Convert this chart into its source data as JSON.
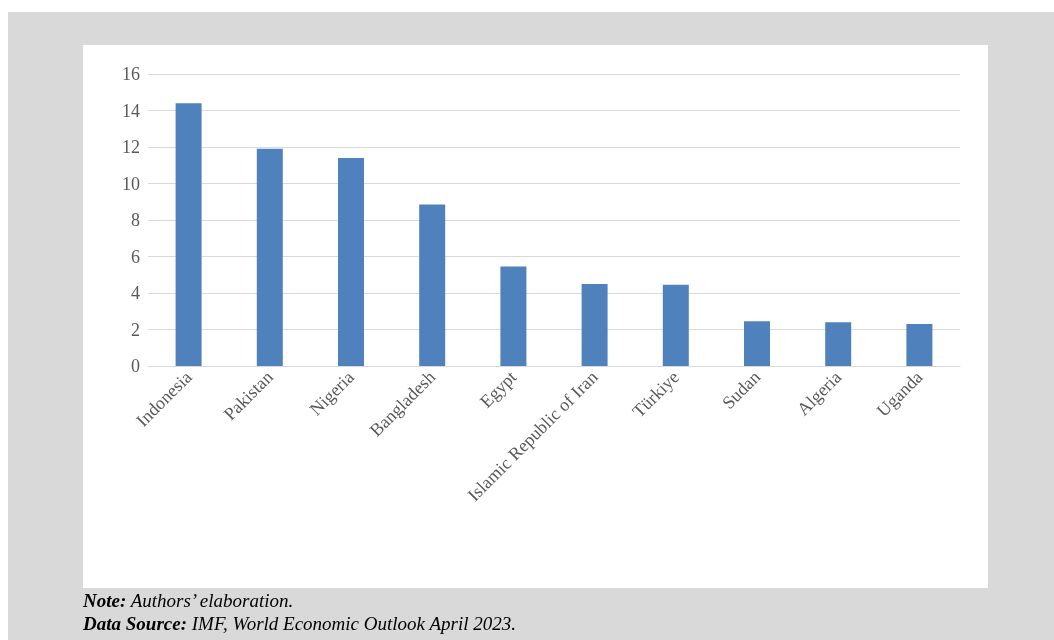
{
  "chart_data": {
    "type": "bar",
    "categories": [
      "Indonesia",
      "Pakistan",
      "Nigeria",
      "Bangladesh",
      "Egypt",
      "Islamic Republic of Iran",
      "Türkiye",
      "Sudan",
      "Algeria",
      "Uganda"
    ],
    "values": [
      14.4,
      11.9,
      11.4,
      8.85,
      5.45,
      4.5,
      4.45,
      2.45,
      2.4,
      2.3
    ],
    "color": "#4f81bd",
    "ylim": [
      0,
      16
    ],
    "yticks": [
      0,
      2,
      4,
      6,
      8,
      10,
      12,
      14,
      16
    ],
    "grid": "y",
    "annotations": [
      "Note: Authors’ elaboration.",
      "Data Source: IMF, World Economic Outlook April 2023."
    ]
  }
}
